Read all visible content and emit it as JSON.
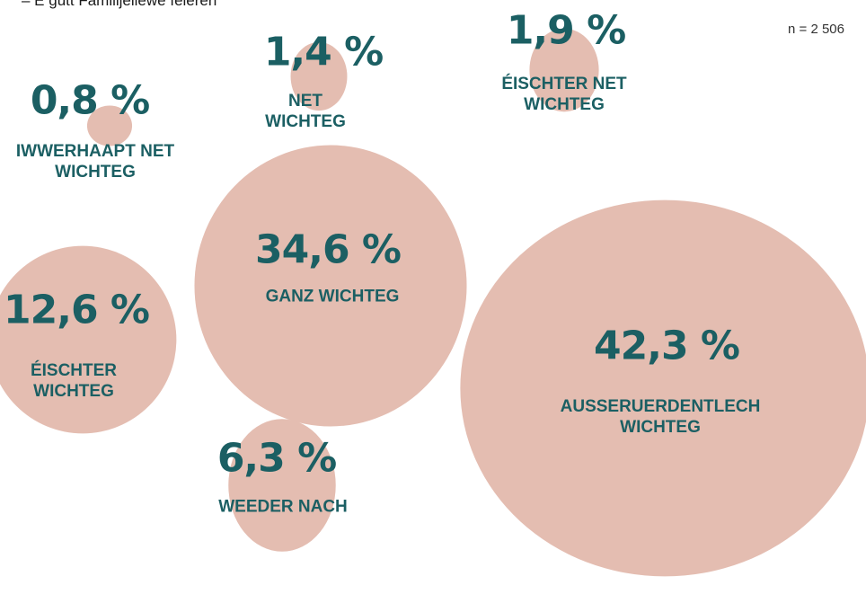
{
  "chart_data": {
    "type": "bubble",
    "title": "– E gutt Familljeliewe feieren",
    "annotation": "n = 2 506",
    "color": "#e4bdb1",
    "label_color": "#1b5f63",
    "categories": [
      "IWWERHAAPT NET WICHTEG",
      "NET WICHTEG",
      "ÉISCHTER NET WICHTEG",
      "GANZ WICHTEG",
      "ÉISCHTER WICHTEG",
      "WEEDER NACH",
      "AUSSERUERDENTLECH WICHTEG"
    ],
    "values": [
      0.8,
      1.4,
      1.9,
      34.6,
      12.6,
      6.3,
      42.3
    ],
    "value_labels": [
      "0,8 %",
      "1,4 %",
      "1,9 %",
      "34,6 %",
      "12,6 %",
      "6,3 %",
      "42,3 %"
    ]
  }
}
